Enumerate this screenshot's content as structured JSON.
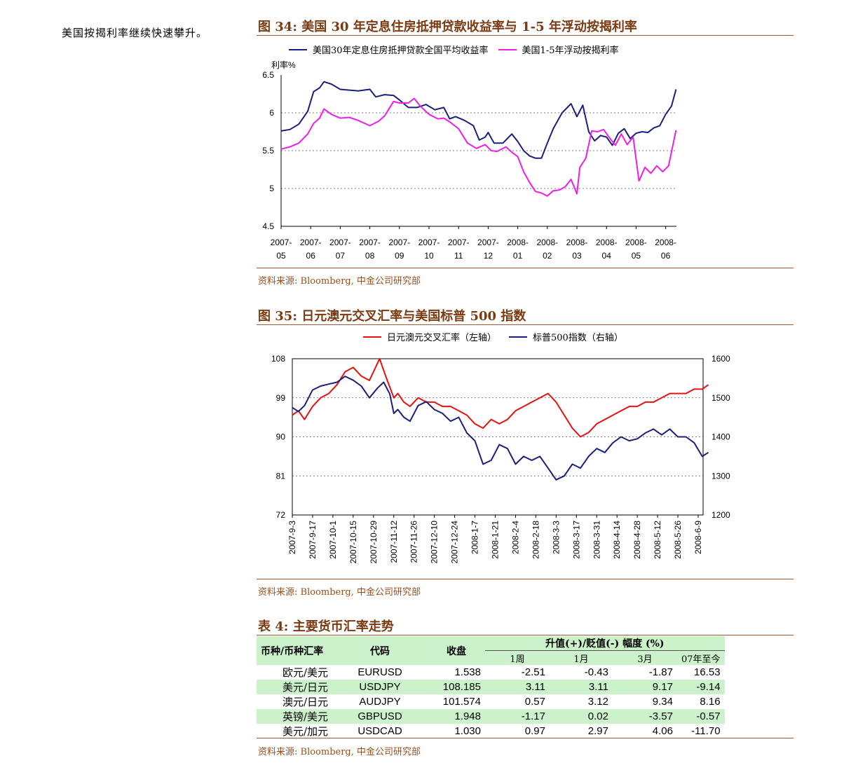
{
  "side_note": "美国按揭利率继续快速攀升。",
  "fig34": {
    "title": "图 34:  美国 30 年定息住房抵押贷款收益率与 1-5 年浮动按揭利率",
    "source": "资料来源:  Bloomberg,  中金公司研究部",
    "chart_data": {
      "type": "line",
      "ylabel": "利率%",
      "ylim": [
        4.5,
        6.5
      ],
      "yticks": [
        "6.5",
        "6",
        "5.5",
        "5",
        "4.5"
      ],
      "x_tick_labels": [
        [
          "2007-",
          "05"
        ],
        [
          "2007-",
          "06"
        ],
        [
          "2007-",
          "07"
        ],
        [
          "2007-",
          "08"
        ],
        [
          "2007-",
          "09"
        ],
        [
          "2007-",
          "10"
        ],
        [
          "2007-",
          "11"
        ],
        [
          "2007-",
          "12"
        ],
        [
          "2008-",
          "01"
        ],
        [
          "2008-",
          "02"
        ],
        [
          "2008-",
          "03"
        ],
        [
          "2008-",
          "04"
        ],
        [
          "2008-",
          "05"
        ],
        [
          "2008-",
          "06"
        ]
      ],
      "x_range": [
        0,
        13.35
      ],
      "grid": "horizontal-dashed",
      "legend": "top",
      "series": [
        {
          "name": "美国30年定息住房抵押贷款全国平均收益率",
          "color": "#1b1f7a",
          "x": [
            0,
            0.3,
            0.6,
            0.9,
            1.1,
            1.3,
            1.45,
            1.7,
            2.0,
            2.3,
            2.6,
            3.0,
            3.2,
            3.5,
            3.8,
            4.0,
            4.3,
            4.6,
            4.9,
            5.2,
            5.5,
            5.7,
            5.9,
            6.2,
            6.5,
            6.7,
            6.9,
            7.0,
            7.2,
            7.5,
            7.8,
            8.0,
            8.2,
            8.4,
            8.6,
            8.8,
            9.0,
            9.2,
            9.5,
            9.8,
            10.0,
            10.2,
            10.4,
            10.6,
            10.8,
            11.0,
            11.2,
            11.4,
            11.6,
            11.8,
            12.0,
            12.2,
            12.4,
            12.6,
            12.8,
            13.0,
            13.2,
            13.35
          ],
          "y": [
            5.76,
            5.78,
            5.85,
            6.02,
            6.28,
            6.33,
            6.41,
            6.38,
            6.31,
            6.3,
            6.29,
            6.31,
            6.21,
            6.24,
            6.23,
            6.17,
            6.07,
            6.07,
            6.11,
            6.04,
            6.07,
            5.92,
            5.95,
            5.9,
            5.83,
            5.64,
            5.68,
            5.74,
            5.6,
            5.6,
            5.72,
            5.62,
            5.5,
            5.43,
            5.4,
            5.4,
            5.6,
            5.79,
            6.0,
            6.12,
            5.95,
            6.1,
            5.75,
            5.63,
            5.7,
            5.68,
            5.57,
            5.73,
            5.79,
            5.66,
            5.73,
            5.75,
            5.74,
            5.8,
            5.83,
            5.98,
            6.09,
            6.31
          ]
        },
        {
          "name": "美国1-5年浮动按揭利率",
          "color": "#ee1ee8",
          "x": [
            0,
            0.3,
            0.6,
            0.9,
            1.1,
            1.3,
            1.45,
            1.7,
            2.0,
            2.3,
            2.6,
            3.0,
            3.3,
            3.5,
            3.8,
            4.0,
            4.3,
            4.5,
            4.7,
            5.0,
            5.3,
            5.5,
            5.7,
            6.0,
            6.3,
            6.6,
            6.9,
            7.1,
            7.3,
            7.6,
            7.8,
            8.0,
            8.2,
            8.4,
            8.6,
            8.8,
            9.0,
            9.2,
            9.4,
            9.6,
            9.8,
            10.0,
            10.1,
            10.3,
            10.5,
            10.7,
            10.9,
            11.1,
            11.3,
            11.5,
            11.7,
            11.9,
            12.1,
            12.3,
            12.5,
            12.7,
            12.9,
            13.1,
            13.35
          ],
          "y": [
            5.52,
            5.55,
            5.6,
            5.72,
            5.86,
            5.93,
            6.05,
            5.98,
            5.93,
            5.94,
            5.9,
            5.83,
            5.89,
            5.96,
            6.15,
            6.13,
            6.13,
            6.19,
            6.09,
            5.98,
            5.92,
            5.93,
            5.88,
            5.79,
            5.6,
            5.53,
            5.58,
            5.5,
            5.49,
            5.55,
            5.48,
            5.42,
            5.22,
            5.08,
            4.96,
            4.94,
            4.9,
            4.97,
            4.98,
            5.02,
            5.12,
            4.93,
            5.28,
            5.4,
            5.76,
            5.75,
            5.78,
            5.67,
            5.57,
            5.72,
            5.58,
            5.68,
            5.1,
            5.28,
            5.2,
            5.3,
            5.22,
            5.3,
            5.77
          ]
        }
      ]
    }
  },
  "fig35": {
    "title": "图 35:  日元澳元交叉汇率与美国标普 500 指数",
    "source": "资料来源:  Bloomberg,  中金公司研究部",
    "chart_data": {
      "type": "line",
      "left_axis": {
        "ylim": [
          72,
          108
        ],
        "ticks": [
          "108",
          "99",
          "90",
          "81",
          "72"
        ]
      },
      "right_axis": {
        "ylim": [
          1200,
          1600
        ],
        "ticks": [
          "1600",
          "1500",
          "1400",
          "1300",
          "1200"
        ]
      },
      "categories": [
        "2007-9-3",
        "2007-9-17",
        "2007-10-1",
        "2007-10-15",
        "2007-10-29",
        "2007-11-12",
        "2007-11-26",
        "2007-12-10",
        "2007-12-24",
        "2008-1-7",
        "2008-1-21",
        "2008-2-4",
        "2008-2-18",
        "2008-3-3",
        "2008-3-17",
        "2008-3-31",
        "2008-4-14",
        "2008-4-28",
        "2008-5-12",
        "2008-5-26",
        "2008-6-9"
      ],
      "grid": "horizontal-dashed",
      "legend": "top",
      "series": [
        {
          "name": "日元澳元交叉汇率（左轴）",
          "color": "#e81010",
          "axis": "left",
          "x": [
            0,
            0.3,
            0.6,
            1.0,
            1.4,
            1.8,
            2.2,
            2.6,
            3.0,
            3.4,
            3.8,
            4.2,
            4.3,
            4.6,
            5.0,
            5.2,
            5.5,
            5.8,
            6.2,
            6.6,
            7.0,
            7.4,
            7.8,
            8.2,
            8.6,
            9.0,
            9.4,
            9.8,
            10.2,
            10.6,
            11.0,
            11.4,
            11.8,
            12.2,
            12.6,
            13.0,
            13.4,
            13.8,
            14.2,
            14.6,
            15.0,
            15.4,
            15.8,
            16.2,
            16.6,
            17.0,
            17.4,
            17.8,
            18.2,
            18.6,
            19.0,
            19.4,
            19.8,
            20.2,
            20.5
          ],
          "y": [
            95,
            96,
            94,
            97,
            99,
            100,
            102,
            105,
            106,
            104,
            103,
            107,
            108,
            104,
            99,
            100,
            98,
            97,
            99,
            98,
            98,
            97,
            97,
            96,
            95,
            93,
            92,
            94,
            93,
            94,
            96,
            97,
            98,
            99,
            100,
            98,
            95,
            92,
            90,
            91,
            93,
            94,
            95,
            96,
            97,
            97,
            98,
            98,
            99,
            100,
            100,
            100,
            101,
            101,
            102
          ]
        },
        {
          "name": "标普500指数（右轴）",
          "color": "#1b1f7a",
          "axis": "right",
          "x": [
            0,
            0.3,
            0.6,
            1.0,
            1.4,
            1.8,
            2.2,
            2.6,
            3.0,
            3.4,
            3.8,
            4.2,
            4.5,
            4.8,
            5.0,
            5.2,
            5.5,
            5.8,
            6.2,
            6.6,
            7.0,
            7.4,
            7.8,
            8.2,
            8.6,
            9.0,
            9.4,
            9.8,
            10.2,
            10.6,
            11.0,
            11.4,
            11.8,
            12.2,
            12.6,
            13.0,
            13.4,
            13.8,
            14.2,
            14.6,
            15.0,
            15.4,
            15.8,
            16.2,
            16.6,
            17.0,
            17.4,
            17.8,
            18.2,
            18.6,
            19.0,
            19.4,
            19.8,
            20.2,
            20.5
          ],
          "y": [
            1475,
            1465,
            1480,
            1520,
            1530,
            1535,
            1540,
            1555,
            1545,
            1530,
            1500,
            1525,
            1540,
            1510,
            1460,
            1470,
            1450,
            1440,
            1480,
            1490,
            1470,
            1460,
            1440,
            1450,
            1410,
            1390,
            1330,
            1340,
            1380,
            1370,
            1330,
            1350,
            1340,
            1350,
            1320,
            1290,
            1300,
            1330,
            1320,
            1350,
            1370,
            1360,
            1385,
            1400,
            1390,
            1395,
            1410,
            1420,
            1405,
            1420,
            1400,
            1400,
            1385,
            1350,
            1360
          ]
        }
      ]
    }
  },
  "table4": {
    "title": "表 4:  主要货币汇率走势",
    "headers": {
      "pair": "币种/币种汇率",
      "code": "代码",
      "close": "收盘",
      "change": "升值(+)/贬值(-)   幅度 (%)",
      "sub": [
        "1周",
        "1月",
        "3月",
        "07年至今"
      ]
    },
    "rows": [
      {
        "pair": "欧元/美元",
        "code": "EURUSD",
        "close": "1.538",
        "w1": "-2.51",
        "m1": "-0.43",
        "m3": "-1.87",
        "ytd": "16.53",
        "shaded": false
      },
      {
        "pair": "美元/日元",
        "code": "USDJPY",
        "close": "108.185",
        "w1": "3.11",
        "m1": "3.11",
        "m3": "9.17",
        "ytd": "-9.14",
        "shaded": true
      },
      {
        "pair": "澳元/日元",
        "code": "AUDJPY",
        "close": "101.574",
        "w1": "0.57",
        "m1": "3.12",
        "m3": "9.34",
        "ytd": "8.16",
        "shaded": false
      },
      {
        "pair": "英镑/美元",
        "code": "GBPUSD",
        "close": "1.948",
        "w1": "-1.17",
        "m1": "0.02",
        "m3": "-3.57",
        "ytd": "-0.57",
        "shaded": true
      },
      {
        "pair": "美元/加元",
        "code": "USDCAD",
        "close": "1.030",
        "w1": "0.97",
        "m1": "2.97",
        "m3": "4.06",
        "ytd": "-11.70",
        "shaded": false
      }
    ],
    "source": "资料来源:  Bloomberg,  中金公司研究部"
  }
}
